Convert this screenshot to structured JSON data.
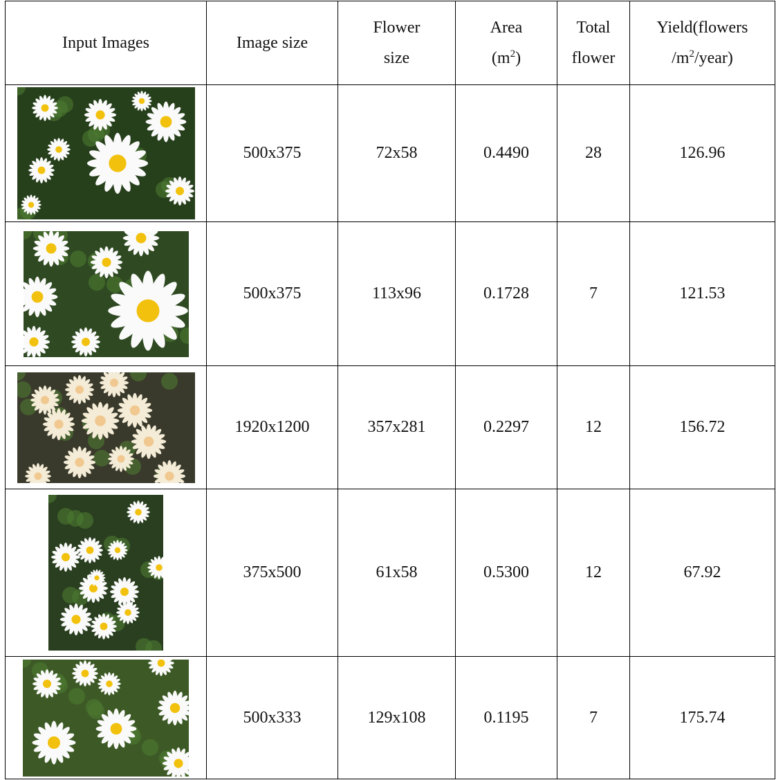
{
  "table": {
    "header": [
      [
        [
          "Input Images"
        ]
      ],
      [
        [
          "Image size"
        ]
      ],
      [
        [
          "Flower"
        ],
        [
          "size"
        ]
      ],
      [
        [
          "Area"
        ],
        [
          "(m",
          "2",
          ")"
        ]
      ],
      [
        [
          "Total"
        ],
        [
          "flower"
        ]
      ],
      [
        [
          "Yield(flowers"
        ],
        [
          "/m",
          "2",
          "/year)"
        ]
      ]
    ],
    "rows": [
      [
        "500x375",
        "72x58",
        "0.4490",
        "28",
        "126.96"
      ],
      [
        "500x375",
        "113x96",
        "0.1728",
        "7",
        "121.53"
      ],
      [
        "1920x1200",
        "357x281",
        "0.2297",
        "12",
        "156.72"
      ],
      [
        "375x500",
        "61x58",
        "0.5300",
        "12",
        "67.92"
      ],
      [
        "500x333",
        "129x108",
        "0.1195",
        "7",
        "175.74"
      ]
    ]
  }
}
